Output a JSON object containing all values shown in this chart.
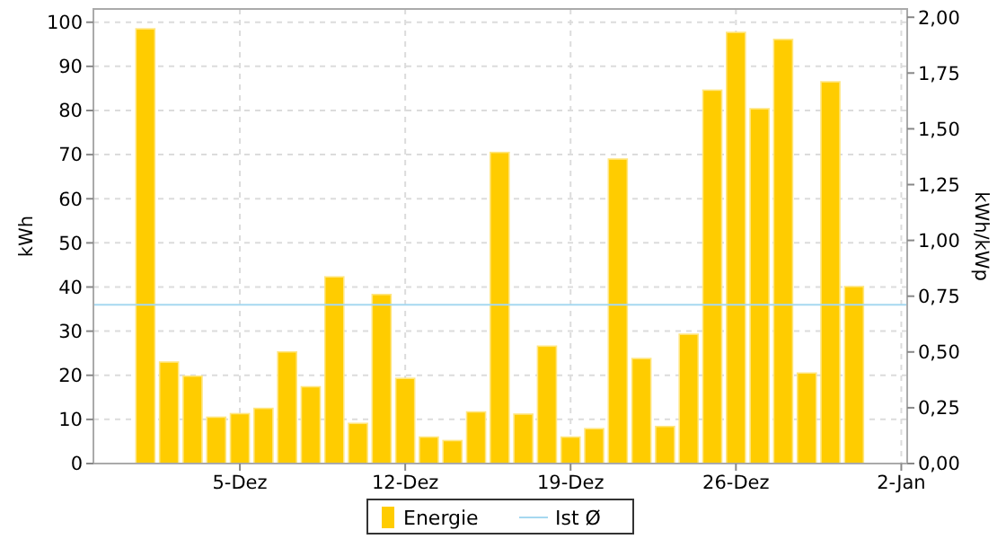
{
  "chart_data": {
    "type": "bar",
    "x": [
      1,
      2,
      3,
      4,
      5,
      6,
      7,
      8,
      9,
      10,
      11,
      12,
      13,
      14,
      15,
      16,
      17,
      18,
      19,
      20,
      21,
      22,
      23,
      24,
      25,
      26,
      27,
      28,
      29,
      30,
      31
    ],
    "series": [
      {
        "name": "Energie",
        "color": "#ffcc00",
        "values": [
          98.5,
          23.0,
          19.8,
          10.5,
          11.3,
          12.5,
          25.3,
          17.4,
          42.3,
          9.1,
          38.3,
          19.3,
          6.0,
          5.2,
          11.7,
          70.5,
          11.2,
          26.6,
          6.0,
          7.9,
          69.0,
          23.8,
          8.4,
          29.3,
          84.6,
          97.7,
          80.4,
          96.1,
          20.5,
          86.5,
          40.1
        ]
      }
    ],
    "xlim": [
      -1.2,
      33.25
    ],
    "xticks": [
      {
        "value": 5,
        "label": "5-Dez"
      },
      {
        "value": 12,
        "label": "12-Dez"
      },
      {
        "value": 19,
        "label": "19-Dez"
      },
      {
        "value": 26,
        "label": "26-Dez"
      },
      {
        "value": 33,
        "label": "2-Jan"
      }
    ],
    "ylim": [
      0,
      103
    ],
    "yticks": [
      0,
      10,
      20,
      30,
      40,
      50,
      60,
      70,
      80,
      90,
      100
    ],
    "ylabel": "kWh",
    "y2lim": [
      0,
      2.037
    ],
    "y2ticks": [
      {
        "value": 0,
        "label": "0,00"
      },
      {
        "value": 0.25,
        "label": "0,25"
      },
      {
        "value": 0.5,
        "label": "0,50"
      },
      {
        "value": 0.75,
        "label": "0,75"
      },
      {
        "value": 1,
        "label": "1,00"
      },
      {
        "value": 1.25,
        "label": "1,25"
      },
      {
        "value": 1.5,
        "label": "1,50"
      },
      {
        "value": 1.75,
        "label": "1,75"
      },
      {
        "value": 2,
        "label": "2,00"
      }
    ],
    "y2label": "kWh/kWp",
    "ref_lines": [
      {
        "axis": "y",
        "value": 36,
        "label": "Ist Ø",
        "color": "#a6d8f0"
      }
    ],
    "grid": true,
    "legend": "bottom"
  }
}
